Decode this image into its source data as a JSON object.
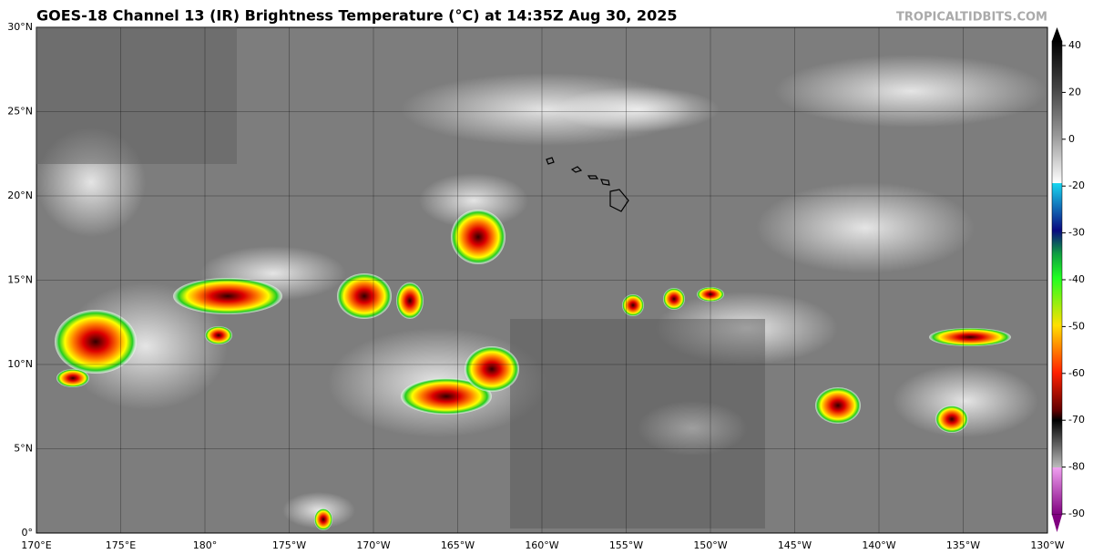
{
  "header": {
    "title": "GOES-18 Channel 13 (IR) Brightness Temperature (°C) at 14:35Z Aug 30, 2025",
    "credit": "TROPICALTIDBITS.COM"
  },
  "map": {
    "lat_labels": [
      "30°N",
      "25°N",
      "20°N",
      "15°N",
      "10°N",
      "5°N",
      "0°"
    ],
    "lon_labels": [
      "170°E",
      "175°E",
      "180°",
      "175°W",
      "170°W",
      "165°W",
      "160°W",
      "155°W",
      "150°W",
      "145°W",
      "140°W",
      "135°W",
      "130°W"
    ]
  },
  "colorbar": {
    "ticks": [
      40,
      20,
      0,
      -20,
      -30,
      -40,
      -50,
      -60,
      -70,
      -80,
      -90
    ]
  }
}
